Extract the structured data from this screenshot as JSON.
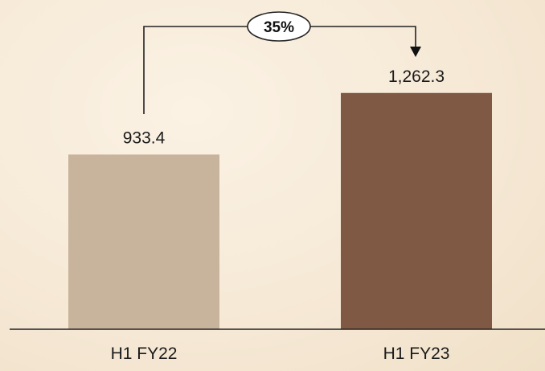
{
  "chart_data": {
    "type": "bar",
    "categories": [
      "H1 FY22",
      "H1 FY23"
    ],
    "values": [
      933.4,
      1262.3
    ],
    "value_labels": [
      "933.4",
      "1,262.3"
    ],
    "colors": [
      "#c8b49c",
      "#7f5943"
    ],
    "ylim": [
      0,
      1450
    ],
    "growth_annotation": "35%",
    "grid": false,
    "legend": "none"
  }
}
